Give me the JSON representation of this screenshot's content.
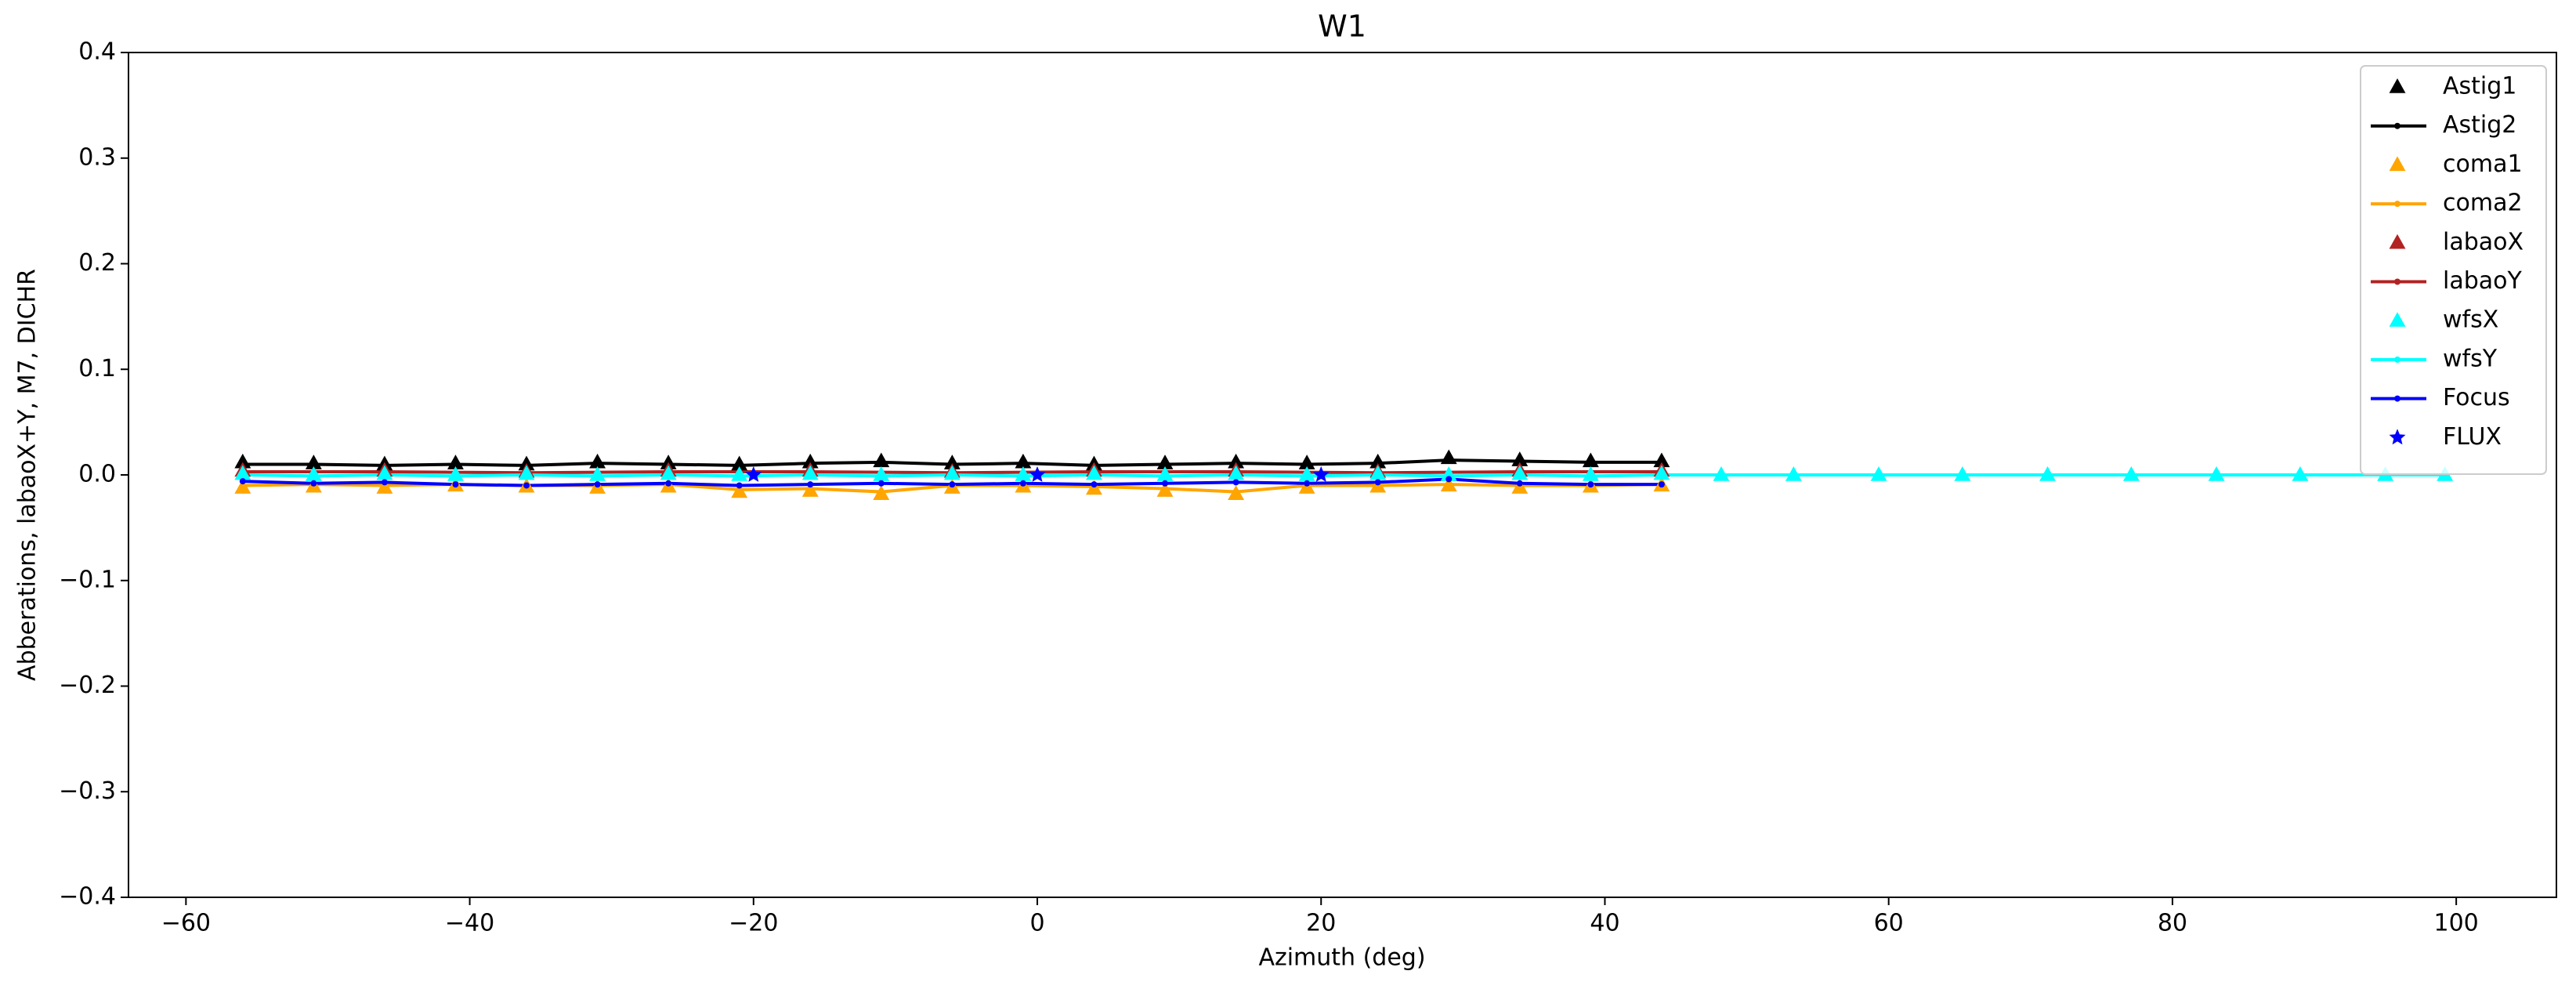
{
  "chart_data": {
    "type": "line",
    "title": "W1",
    "xlabel": "Azimuth (deg)",
    "ylabel": "Abberations, labaoX+Y, M7, DICHR",
    "xlim": [
      -64.05,
      107.06
    ],
    "ylim": [
      -0.4,
      0.4
    ],
    "xticks": [
      {
        "value": -60,
        "label": "−60"
      },
      {
        "value": -40,
        "label": "−40"
      },
      {
        "value": -20,
        "label": "−20"
      },
      0,
      20,
      40,
      60,
      80,
      100
    ],
    "yticks": [
      {
        "value": -0.4,
        "label": "−0.4"
      },
      {
        "value": -0.3,
        "label": "−0.3"
      },
      {
        "value": -0.2,
        "label": "−0.2"
      },
      {
        "value": -0.1,
        "label": "−0.1"
      },
      {
        "value": 0,
        "label": "0.0"
      },
      0.1,
      0.2,
      0.3,
      0.4
    ],
    "legend": "upper right",
    "series": [
      {
        "name": "Astig1",
        "color": "#000000",
        "marker": "triangle",
        "line": false,
        "x": [
          -56,
          -51,
          -46,
          -41,
          -36,
          -31,
          -26,
          -21,
          -16,
          -11,
          -6,
          -1,
          4,
          9,
          14,
          19,
          24,
          29,
          34,
          39,
          44
        ],
        "values": [
          0.012,
          0.011,
          0.01,
          0.011,
          0.01,
          0.012,
          0.011,
          0.01,
          0.012,
          0.013,
          0.011,
          0.012,
          0.01,
          0.011,
          0.012,
          0.011,
          0.012,
          0.016,
          0.014,
          0.013,
          0.013
        ]
      },
      {
        "name": "Astig2",
        "color": "#000000",
        "marker": "dot",
        "line": true,
        "x": [
          -56,
          -51,
          -46,
          -41,
          -36,
          -31,
          -26,
          -21,
          -16,
          -11,
          -6,
          -1,
          4,
          9,
          14,
          19,
          24,
          29,
          34,
          39,
          44
        ],
        "values": [
          0.01,
          0.01,
          0.009,
          0.01,
          0.009,
          0.011,
          0.01,
          0.009,
          0.011,
          0.012,
          0.01,
          0.011,
          0.009,
          0.01,
          0.011,
          0.01,
          0.011,
          0.014,
          0.013,
          0.012,
          0.012
        ]
      },
      {
        "name": "coma1",
        "color": "#ffa500",
        "marker": "triangle",
        "line": false,
        "x": [
          -56,
          -51,
          -46,
          -41,
          -36,
          -31,
          -26,
          -21,
          -16,
          -11,
          -6,
          -1,
          4,
          9,
          14,
          19,
          24,
          29,
          34,
          39,
          44
        ],
        "values": [
          -0.012,
          -0.011,
          -0.012,
          -0.01,
          -0.011,
          -0.012,
          -0.011,
          -0.016,
          -0.015,
          -0.018,
          -0.012,
          -0.011,
          -0.013,
          -0.015,
          -0.018,
          -0.012,
          -0.011,
          -0.01,
          -0.012,
          -0.011,
          -0.01
        ]
      },
      {
        "name": "coma2",
        "color": "#ffa500",
        "marker": "dot",
        "line": true,
        "x": [
          -56,
          -51,
          -46,
          -41,
          -36,
          -31,
          -26,
          -21,
          -16,
          -11,
          -6,
          -1,
          4,
          9,
          14,
          19,
          24,
          29,
          34,
          39,
          44
        ],
        "values": [
          -0.01,
          -0.009,
          -0.01,
          -0.009,
          -0.01,
          -0.01,
          -0.009,
          -0.014,
          -0.013,
          -0.016,
          -0.01,
          -0.01,
          -0.011,
          -0.013,
          -0.016,
          -0.01,
          -0.01,
          -0.009,
          -0.01,
          -0.01,
          -0.009
        ]
      },
      {
        "name": "labaoX",
        "color": "#b22222",
        "marker": "triangle",
        "line": false,
        "x": [
          -56,
          -46,
          -36,
          -26,
          -16,
          -6,
          4,
          14,
          24,
          34,
          44
        ],
        "values": [
          0.004,
          0.004,
          0.003,
          0.004,
          0.004,
          0.003,
          0.004,
          0.004,
          0.003,
          0.004,
          0.004
        ]
      },
      {
        "name": "labaoY",
        "color": "#b22222",
        "marker": "dot",
        "line": true,
        "x": [
          -56,
          -46,
          -36,
          -26,
          -16,
          -6,
          4,
          14,
          24,
          34,
          44
        ],
        "values": [
          0.003,
          0.003,
          0.002,
          0.003,
          0.003,
          0.002,
          0.003,
          0.003,
          0.002,
          0.003,
          0.003
        ]
      },
      {
        "name": "wfsX",
        "color": "#00ffff",
        "marker": "triangle",
        "line": false,
        "x": [
          -56,
          -51,
          -46,
          -41,
          -36,
          -31,
          -26,
          -21,
          -16,
          -11,
          -6,
          -1,
          4,
          9,
          14,
          19,
          24,
          29,
          34,
          39,
          44,
          48.2,
          53.3,
          59.3,
          65.2,
          71.2,
          77.1,
          83.1,
          89,
          95,
          99.2
        ],
        "values": [
          0.001,
          0,
          0.001,
          0,
          0.001,
          0,
          0.001,
          0,
          0.001,
          0,
          0.001,
          0,
          0.001,
          0,
          0.001,
          0,
          0.001,
          0,
          0.001,
          0,
          0.001,
          0,
          0,
          0,
          0,
          0,
          0,
          0,
          0,
          0,
          0
        ]
      },
      {
        "name": "wfsY",
        "color": "#00ffff",
        "marker": "dot",
        "line": true,
        "x": [
          -56,
          -51,
          -46,
          -41,
          -36,
          -31,
          -26,
          -21,
          -16,
          -11,
          -6,
          -1,
          4,
          9,
          14,
          19,
          24,
          29,
          34,
          39,
          44,
          48.2,
          53.3,
          59.3,
          65.2,
          71.2,
          77.1,
          83.1,
          89,
          95,
          99.2
        ],
        "values": [
          0,
          -0.001,
          0,
          -0.001,
          0,
          -0.001,
          0,
          -0.001,
          0,
          -0.001,
          0,
          -0.001,
          0,
          -0.001,
          0,
          -0.001,
          0,
          -0.001,
          0,
          -0.001,
          0,
          0,
          0,
          0,
          0,
          0,
          0,
          0,
          0,
          0,
          0
        ]
      },
      {
        "name": "Focus",
        "color": "#0000ff",
        "marker": "dot",
        "line": true,
        "x": [
          -56,
          -51,
          -46,
          -41,
          -36,
          -31,
          -26,
          -21,
          -16,
          -11,
          -6,
          -1,
          4,
          9,
          14,
          19,
          24,
          29,
          34,
          39,
          44
        ],
        "values": [
          -0.006,
          -0.008,
          -0.007,
          -0.009,
          -0.01,
          -0.009,
          -0.008,
          -0.01,
          -0.009,
          -0.008,
          -0.009,
          -0.008,
          -0.009,
          -0.008,
          -0.007,
          -0.008,
          -0.007,
          -0.004,
          -0.008,
          -0.009,
          -0.009
        ]
      },
      {
        "name": "FLUX",
        "color": "#0000ff",
        "marker": "star",
        "line": false,
        "x": [
          -20,
          0,
          20
        ],
        "values": [
          0,
          0,
          0
        ]
      }
    ]
  }
}
